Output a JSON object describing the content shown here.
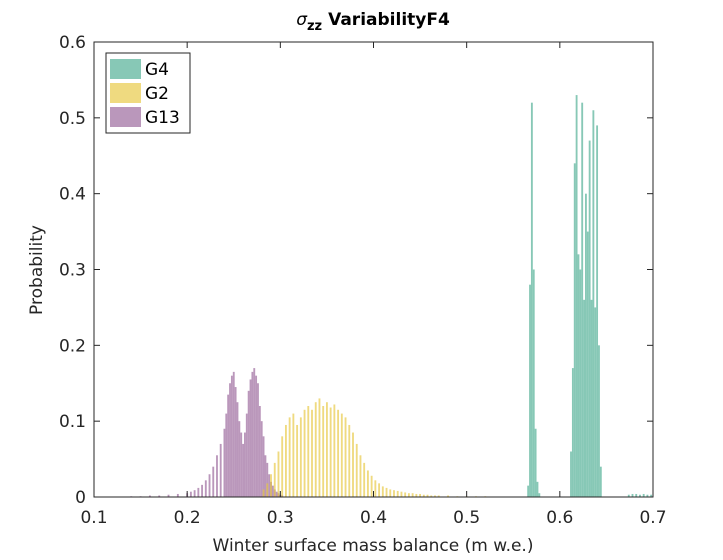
{
  "chart_data": {
    "type": "histogram",
    "title_symbol": "σ",
    "title_subscript": "zz",
    "title_rest": "VariabilityF4",
    "xlabel": "Winter surface mass balance (m w.e.)",
    "ylabel": "Probability",
    "xlim": [
      0.1,
      0.7
    ],
    "ylim": [
      0,
      0.6
    ],
    "xticks": [
      "0.1",
      "0.2",
      "0.3",
      "0.4",
      "0.5",
      "0.6",
      "0.7"
    ],
    "yticks": [
      "0",
      "0.1",
      "0.2",
      "0.3",
      "0.4",
      "0.5",
      "0.6"
    ],
    "bar_width": 0.002,
    "legend_position": "top-left",
    "series": [
      {
        "name": "G13",
        "color": "#9c6b9e",
        "opacity": 0.7,
        "x": [
          0.14,
          0.15,
          0.16,
          0.17,
          0.18,
          0.19,
          0.2,
          0.204,
          0.208,
          0.212,
          0.216,
          0.22,
          0.224,
          0.228,
          0.232,
          0.236,
          0.24,
          0.242,
          0.244,
          0.246,
          0.248,
          0.25,
          0.252,
          0.254,
          0.256,
          0.258,
          0.26,
          0.262,
          0.264,
          0.266,
          0.268,
          0.27,
          0.272,
          0.274,
          0.276,
          0.278,
          0.28,
          0.282,
          0.284,
          0.286,
          0.288,
          0.29,
          0.292,
          0.294,
          0.296,
          0.298,
          0.3,
          0.302
        ],
        "values": [
          0.001,
          0.001,
          0.002,
          0.002,
          0.003,
          0.004,
          0.005,
          0.007,
          0.009,
          0.012,
          0.016,
          0.022,
          0.03,
          0.04,
          0.055,
          0.07,
          0.09,
          0.11,
          0.135,
          0.15,
          0.16,
          0.165,
          0.145,
          0.125,
          0.1,
          0.085,
          0.07,
          0.085,
          0.11,
          0.14,
          0.155,
          0.165,
          0.17,
          0.16,
          0.15,
          0.12,
          0.1,
          0.08,
          0.055,
          0.045,
          0.03,
          0.02,
          0.015,
          0.01,
          0.007,
          0.005,
          0.003,
          0.002
        ]
      },
      {
        "name": "G2",
        "color": "#e6c63c",
        "opacity": 0.65,
        "x": [
          0.282,
          0.286,
          0.29,
          0.294,
          0.298,
          0.302,
          0.306,
          0.31,
          0.314,
          0.318,
          0.322,
          0.326,
          0.33,
          0.334,
          0.338,
          0.342,
          0.346,
          0.35,
          0.354,
          0.358,
          0.362,
          0.366,
          0.37,
          0.374,
          0.378,
          0.382,
          0.386,
          0.39,
          0.394,
          0.398,
          0.402,
          0.406,
          0.41,
          0.414,
          0.418,
          0.422,
          0.426,
          0.43,
          0.434,
          0.438,
          0.442,
          0.446,
          0.45,
          0.454,
          0.458,
          0.462,
          0.466,
          0.47,
          0.48,
          0.49,
          0.5,
          0.51,
          0.52
        ],
        "values": [
          0.01,
          0.018,
          0.03,
          0.045,
          0.06,
          0.08,
          0.095,
          0.105,
          0.11,
          0.095,
          0.105,
          0.115,
          0.12,
          0.115,
          0.125,
          0.13,
          0.12,
          0.125,
          0.118,
          0.122,
          0.115,
          0.11,
          0.105,
          0.095,
          0.085,
          0.07,
          0.055,
          0.045,
          0.035,
          0.028,
          0.022,
          0.018,
          0.014,
          0.012,
          0.01,
          0.009,
          0.008,
          0.007,
          0.006,
          0.005,
          0.005,
          0.004,
          0.004,
          0.003,
          0.003,
          0.002,
          0.002,
          0.002,
          0.002,
          0.001,
          0.001,
          0.001,
          0.001
        ]
      },
      {
        "name": "G4",
        "color": "#5fb59d",
        "opacity": 0.75,
        "x": [
          0.566,
          0.568,
          0.57,
          0.572,
          0.574,
          0.576,
          0.578,
          0.612,
          0.614,
          0.616,
          0.618,
          0.62,
          0.622,
          0.624,
          0.626,
          0.628,
          0.63,
          0.632,
          0.634,
          0.636,
          0.638,
          0.64,
          0.642,
          0.644,
          0.674,
          0.678,
          0.682,
          0.686,
          0.69,
          0.694,
          0.698
        ],
        "values": [
          0.015,
          0.28,
          0.52,
          0.3,
          0.09,
          0.02,
          0.005,
          0.06,
          0.17,
          0.44,
          0.53,
          0.32,
          0.3,
          0.52,
          0.26,
          0.4,
          0.35,
          0.47,
          0.26,
          0.51,
          0.25,
          0.49,
          0.2,
          0.04,
          0.003,
          0.004,
          0.004,
          0.003,
          0.004,
          0.003,
          0.003
        ]
      }
    ]
  }
}
